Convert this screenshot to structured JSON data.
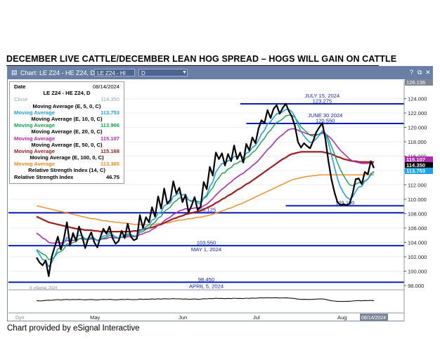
{
  "headline": "DECEMBER LIVE CATTLE/DECEMBER LEAN HOG SPREAD –    HOGS WILL GAIN ON CATTLE",
  "footer": "Chart provided by eSignal Interactive",
  "titlebar": {
    "title": "Chart: LE Z24 - HE Z24, D",
    "symbol_box": "LE Z24 - HI",
    "interval_box": "D",
    "icons": [
      "chart-icon",
      "dropdown-arrow-icon",
      "help-icon",
      "restore-icon",
      "close-icon"
    ]
  },
  "legend": {
    "date_label": "Date",
    "date_value": "08/14/2024",
    "symbol": "LE Z24 - HE Z24, D",
    "close_label": "Close",
    "close_value": "114.350",
    "rows": [
      {
        "title": "Moving Average (E, 5, 0, C)",
        "label": "Moving Average",
        "value": "113.753",
        "color": "#1fa0e6"
      },
      {
        "title": "Moving Average (E, 10, 0, C)",
        "label": "Moving Average",
        "value": "113.906",
        "color": "#13a34a"
      },
      {
        "title": "Moving Average (E, 20, 0, C)",
        "label": "Moving Average",
        "value": "115.107",
        "color": "#b02bb0"
      },
      {
        "title": "Moving Average (E, 50, 0, C)",
        "label": "Moving Average",
        "value": "115.168",
        "color": "#a31d1d"
      },
      {
        "title": "Moving Average (E, 100, 0, C)",
        "label": "Moving Average",
        "value": "113.385",
        "color": "#f28a1c"
      }
    ],
    "rsi_title": "Relative Strength Index (14, C)",
    "rsi_label": "Relative Strength Index",
    "rsi_value": "46.75"
  },
  "chart_data": {
    "type": "line",
    "x_labels": [
      "May",
      "Jun",
      "Jul",
      "Aug"
    ],
    "current_date_tag": "08/14/2024",
    "copyright": "© eSignal, 2024",
    "dyn_label": "Dyn",
    "ylim": [
      97.6,
      126.6
    ],
    "yticks": [
      "124.000",
      "122.000",
      "120.000",
      "118.000",
      "116.000",
      "114.000",
      "112.000",
      "110.000",
      "108.000",
      "106.000",
      "104.000",
      "102.000",
      "100.000",
      "98.000"
    ],
    "top_value": "126.136",
    "price_tags": [
      {
        "value": "115.107",
        "bg": "#b02bb0"
      },
      {
        "value": "114.350",
        "bg": "#000000"
      },
      {
        "value": "113.753",
        "bg": "#1fa0e6"
      }
    ],
    "levels": [
      {
        "value": 123.275,
        "label": "123.275",
        "note": "JULY 15, 2024",
        "x_from": 0.6
      },
      {
        "value": 120.55,
        "label": "120.550",
        "note": "JUNE 30  2024",
        "x_from": 0.62
      },
      {
        "value": 109.1,
        "label": "109.100",
        "note": "",
        "x_from": 0.74
      },
      {
        "value": 108.125,
        "label": "108.125",
        "note": "",
        "x_from": 0.0
      },
      {
        "value": 103.55,
        "label": "103.550",
        "note": "MAY 1, 2024",
        "x_from": 0.0
      },
      {
        "value": 98.45,
        "label": "98.450",
        "note": "APRIL 5, 2024",
        "x_from": 0.0
      }
    ],
    "series": [
      {
        "key": "close",
        "color": "#000000",
        "width": 2.2,
        "values": [
          101.9,
          101.2,
          100.8,
          101.5,
          99.3,
          102.0,
          103.4,
          104.8,
          103.0,
          104.5,
          106.8,
          103.6,
          105.3,
          104.2,
          106.2,
          104.8,
          103.2,
          104.5,
          105.4,
          104.0,
          103.3,
          104.7,
          105.9,
          105.2,
          106.2,
          104.6,
          103.8,
          104.2,
          105.6,
          104.6,
          106.6,
          104.8,
          104.3,
          104.5,
          107.8,
          106.0,
          107.5,
          106.8,
          108.9,
          107.6,
          110.4,
          108.7,
          111.5,
          109.4,
          109.9,
          112.5,
          110.8,
          111.6,
          109.6,
          110.6,
          108.2,
          109.1,
          110.3,
          108.5,
          109.0,
          112.4,
          111.4,
          114.5,
          113.3,
          116.5,
          115.6,
          116.4,
          114.7,
          116.3,
          115.3,
          117.5,
          115.6,
          116.5,
          115.1,
          117.7,
          116.8,
          118.6,
          117.8,
          119.8,
          121.0,
          120.6,
          122.4,
          121.3,
          122.6,
          123.1,
          121.9,
          122.7,
          123.3,
          122.3,
          121.5,
          120.2,
          118.0,
          117.2,
          117.8,
          117.4,
          117.1,
          118.1,
          119.3,
          120.0,
          120.6,
          118.5,
          115.4,
          112.8,
          111.0,
          109.6,
          109.2,
          109.3,
          109.2,
          109.4,
          110.8,
          112.8,
          112.9,
          112.1,
          113.8,
          113.5,
          115.3,
          114.35
        ]
      },
      {
        "key": "ema5",
        "color": "#1fa0e6",
        "width": 1.6,
        "values": [
          102.9,
          102.3,
          101.6,
          101.5,
          100.6,
          101.2,
          102.1,
          103.1,
          103.3,
          103.9,
          104.7,
          104.4,
          104.8,
          104.6,
          105.0,
          104.9,
          104.5,
          104.5,
          104.7,
          104.6,
          104.2,
          104.5,
          104.9,
          104.9,
          105.3,
          105.1,
          104.7,
          104.5,
          104.8,
          104.7,
          105.2,
          105.1,
          104.9,
          104.8,
          105.6,
          105.8,
          106.2,
          106.4,
          107.1,
          107.3,
          108.1,
          108.2,
          109.1,
          109.3,
          109.5,
          110.4,
          110.6,
          110.9,
          110.6,
          110.7,
          109.9,
          109.7,
          109.9,
          109.5,
          109.3,
          110.2,
          110.6,
          111.8,
          112.4,
          113.8,
          114.4,
          115.0,
          114.9,
          115.4,
          115.4,
          116.0,
          115.9,
          116.1,
          115.8,
          116.4,
          116.6,
          117.2,
          117.5,
          118.2,
          119.1,
          119.6,
          120.5,
          120.8,
          121.4,
          121.9,
          121.9,
          122.2,
          122.5,
          122.5,
          122.2,
          121.5,
          120.4,
          119.4,
          118.8,
          118.3,
          117.9,
          118.0,
          118.4,
          118.9,
          119.5,
          119.2,
          117.9,
          116.2,
          114.5,
          112.9,
          111.7,
          110.9,
          110.3,
          110.0,
          110.3,
          111.1,
          111.7,
          111.8,
          112.5,
          112.8,
          113.6,
          113.75
        ]
      },
      {
        "key": "ema10",
        "color": "#13a34a",
        "width": 1.4,
        "values": [
          103.0,
          102.7,
          102.4,
          102.2,
          101.6,
          101.7,
          102.0,
          102.6,
          102.7,
          103.1,
          103.8,
          103.7,
          104.0,
          104.1,
          104.5,
          104.6,
          104.4,
          104.4,
          104.6,
          104.5,
          104.3,
          104.4,
          104.6,
          104.7,
          105.0,
          104.9,
          104.8,
          104.6,
          104.8,
          104.8,
          105.0,
          105.0,
          104.9,
          104.9,
          105.4,
          105.5,
          105.8,
          106.0,
          106.5,
          106.8,
          107.4,
          107.6,
          108.3,
          108.6,
          108.9,
          109.5,
          109.8,
          110.2,
          110.1,
          110.2,
          109.9,
          109.8,
          109.9,
          109.7,
          109.6,
          110.1,
          110.4,
          111.1,
          111.6,
          112.5,
          113.0,
          113.6,
          113.7,
          114.2,
          114.4,
          114.9,
          115.0,
          115.3,
          115.3,
          115.8,
          116.0,
          116.5,
          116.8,
          117.4,
          118.0,
          118.5,
          119.2,
          119.6,
          120.2,
          120.7,
          120.9,
          121.2,
          121.6,
          121.7,
          121.7,
          121.4,
          120.8,
          120.1,
          119.7,
          119.3,
          118.9,
          118.8,
          118.9,
          119.1,
          119.4,
          119.2,
          118.5,
          117.4,
          116.3,
          115.1,
          114.1,
          113.3,
          112.6,
          112.0,
          111.9,
          112.1,
          112.3,
          112.3,
          112.6,
          112.8,
          113.4,
          113.9
        ]
      },
      {
        "key": "ema20",
        "color": "#b02bb0",
        "width": 1.6,
        "values": [
          105.3,
          105.0,
          104.6,
          104.4,
          104.0,
          103.9,
          103.9,
          104.0,
          103.9,
          104.0,
          104.3,
          104.2,
          104.3,
          104.3,
          104.5,
          104.5,
          104.4,
          104.4,
          104.5,
          104.4,
          104.3,
          104.4,
          104.5,
          104.5,
          104.7,
          104.7,
          104.6,
          104.6,
          104.7,
          104.7,
          104.8,
          104.8,
          104.8,
          104.8,
          105.1,
          105.2,
          105.4,
          105.5,
          105.8,
          106.0,
          106.4,
          106.6,
          107.0,
          107.3,
          107.5,
          107.9,
          108.1,
          108.4,
          108.5,
          108.7,
          108.6,
          108.7,
          108.8,
          108.8,
          108.8,
          109.1,
          109.3,
          109.7,
          110.1,
          110.6,
          111.0,
          111.4,
          111.7,
          112.1,
          112.4,
          112.8,
          113.1,
          113.4,
          113.6,
          114.0,
          114.3,
          114.7,
          115.0,
          115.4,
          115.9,
          116.4,
          116.9,
          117.3,
          117.8,
          118.3,
          118.7,
          119.0,
          119.4,
          119.7,
          119.8,
          119.8,
          119.6,
          119.4,
          119.3,
          119.1,
          119.0,
          119.0,
          119.0,
          119.0,
          119.2,
          119.1,
          118.8,
          118.4,
          117.9,
          117.3,
          116.8,
          116.4,
          116.0,
          115.6,
          115.3,
          115.2,
          115.1,
          115.0,
          115.0,
          115.0,
          115.1,
          115.1
        ]
      },
      {
        "key": "ema50",
        "color": "#a31d1d",
        "width": 2.2,
        "values": [
          107.6,
          107.4,
          107.2,
          107.0,
          106.8,
          106.7,
          106.6,
          106.5,
          106.4,
          106.3,
          106.2,
          106.1,
          106.0,
          105.9,
          105.9,
          105.8,
          105.7,
          105.7,
          105.7,
          105.6,
          105.6,
          105.5,
          105.5,
          105.5,
          105.5,
          105.5,
          105.5,
          105.5,
          105.5,
          105.5,
          105.5,
          105.5,
          105.6,
          105.6,
          105.7,
          105.8,
          105.9,
          106.0,
          106.1,
          106.2,
          106.4,
          106.5,
          106.7,
          106.9,
          107.1,
          107.3,
          107.4,
          107.6,
          107.7,
          107.9,
          108.0,
          108.1,
          108.2,
          108.3,
          108.4,
          108.6,
          108.8,
          109.0,
          109.2,
          109.5,
          109.7,
          110.0,
          110.2,
          110.5,
          110.7,
          111.0,
          111.3,
          111.5,
          111.8,
          112.1,
          112.3,
          112.6,
          112.9,
          113.2,
          113.5,
          113.8,
          114.1,
          114.4,
          114.7,
          115.0,
          115.3,
          115.6,
          115.8,
          116.1,
          116.3,
          116.4,
          116.5,
          116.6,
          116.6,
          116.6,
          116.6,
          116.6,
          116.6,
          116.6,
          116.6,
          116.5,
          116.4,
          116.3,
          116.1,
          115.9,
          115.8,
          115.6,
          115.5,
          115.4,
          115.3,
          115.3,
          115.2,
          115.2,
          115.2,
          115.2,
          115.2,
          115.17
        ]
      },
      {
        "key": "ema100",
        "color": "#f28a1c",
        "width": 1.4,
        "values": [
          109.1,
          109.0,
          108.9,
          108.8,
          108.7,
          108.6,
          108.5,
          108.4,
          108.3,
          108.2,
          108.1,
          108.0,
          107.9,
          107.8,
          107.7,
          107.6,
          107.5,
          107.4,
          107.3,
          107.3,
          107.2,
          107.1,
          107.0,
          107.0,
          106.9,
          106.9,
          106.8,
          106.8,
          106.7,
          106.7,
          106.6,
          106.6,
          106.5,
          106.5,
          106.5,
          106.5,
          106.5,
          106.5,
          106.5,
          106.5,
          106.6,
          106.6,
          106.7,
          106.7,
          106.8,
          106.9,
          107.0,
          107.1,
          107.1,
          107.2,
          107.3,
          107.3,
          107.4,
          107.5,
          107.5,
          107.6,
          107.7,
          107.8,
          107.9,
          108.1,
          108.2,
          108.4,
          108.5,
          108.7,
          108.8,
          109.0,
          109.2,
          109.3,
          109.5,
          109.7,
          109.9,
          110.1,
          110.3,
          110.5,
          110.7,
          110.9,
          111.1,
          111.3,
          111.5,
          111.7,
          111.9,
          112.1,
          112.3,
          112.5,
          112.7,
          112.8,
          112.9,
          113.0,
          113.1,
          113.2,
          113.2,
          113.3,
          113.3,
          113.4,
          113.4,
          113.4,
          113.4,
          113.4,
          113.4,
          113.4,
          113.4,
          113.4,
          113.4,
          113.4,
          113.4,
          113.4,
          113.4,
          113.4,
          113.4,
          113.4,
          113.4,
          113.39
        ]
      }
    ],
    "rsi": {
      "yticks": [
        "100.00",
        "0.00"
      ],
      "current": "46.75",
      "values": [
        48,
        45,
        46,
        50,
        52,
        51,
        55,
        58,
        54,
        57,
        60,
        56,
        59,
        57,
        60,
        58,
        55,
        57,
        59,
        56,
        55,
        58,
        60,
        58,
        61,
        57,
        56,
        57,
        60,
        58,
        62,
        58,
        57,
        58,
        63,
        60,
        62,
        61,
        64,
        62,
        66,
        63,
        67,
        64,
        65,
        68,
        65,
        66,
        63,
        64,
        61,
        62,
        64,
        61,
        62,
        67,
        65,
        69,
        67,
        71,
        69,
        70,
        67,
        70,
        68,
        72,
        69,
        70,
        68,
        72,
        70,
        73,
        71,
        74,
        76,
        75,
        77,
        75,
        76,
        77,
        74,
        75,
        76,
        73,
        71,
        68,
        63,
        60,
        61,
        60,
        59,
        61,
        63,
        64,
        65,
        60,
        53,
        47,
        44,
        41,
        40,
        40,
        41,
        41,
        44,
        47,
        48,
        46,
        49,
        48,
        50,
        46.75
      ]
    }
  }
}
